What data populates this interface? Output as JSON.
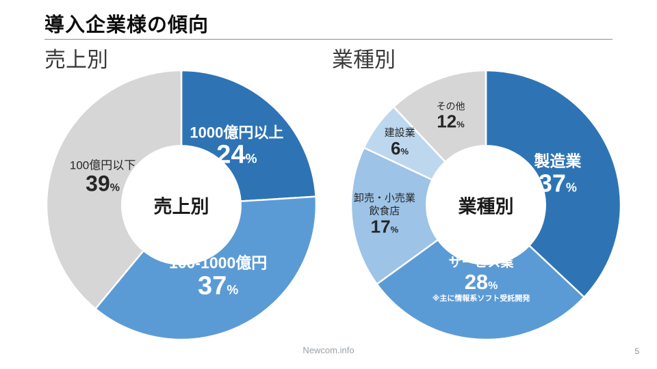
{
  "page": {
    "title": "導入企業様の傾向",
    "footer_site": "Newcom.info",
    "page_number": "5"
  },
  "headings": {
    "left": "売上別",
    "right": "業種別"
  },
  "chart_data": [
    {
      "type": "pie",
      "style": "donut",
      "title": "売上別",
      "center_label": "売上別",
      "unit": "%",
      "start_angle_deg": 0,
      "direction": "clockwise",
      "inner_radius_ratio": 0.44,
      "legend_position": "inside-slices",
      "slices": [
        {
          "label": [
            "1000億円以上"
          ],
          "value": 24,
          "color": "#2E74B5",
          "text_color": "#FFFFFF",
          "label_r": 0.6,
          "label_size": 22,
          "label_bold": true,
          "value_size": 38
        },
        {
          "label": [
            "100-1000億円"
          ],
          "value": 37,
          "color": "#5B9BD5",
          "text_color": "#FFFFFF",
          "label_r": 0.6,
          "label_size": 23,
          "label_bold": true,
          "value_size": 38
        },
        {
          "label": [
            "100億円以下"
          ],
          "value": 39,
          "color": "#D6D6D6",
          "text_color": "#262626",
          "label_r": 0.62,
          "label_size": 17,
          "label_bold": false,
          "value_size": 32
        }
      ]
    },
    {
      "type": "pie",
      "style": "donut",
      "title": "業種別",
      "center_label": "業種別",
      "unit": "%",
      "start_angle_deg": 0,
      "direction": "clockwise",
      "inner_radius_ratio": 0.44,
      "legend_position": "inside-slices",
      "slices": [
        {
          "label": [
            "製造業"
          ],
          "value": 37,
          "color": "#2E74B5",
          "text_color": "#FFFFFF",
          "label_r": 0.58,
          "label_size": 23,
          "label_bold": true,
          "value_size": 36
        },
        {
          "label": [
            "サービス業"
          ],
          "value": 28,
          "color": "#5B9BD5",
          "text_color": "#FFFFFF",
          "label_r": 0.56,
          "label_size": 19,
          "label_bold": true,
          "value_size": 31,
          "note": "※主に情報系ソフト受託開発",
          "note_size": 11
        },
        {
          "label": [
            "卸売・小売業",
            "飲食店"
          ],
          "value": 17,
          "color": "#9DC3E6",
          "text_color": "#262626",
          "label_r": 0.755,
          "label_size": 15,
          "label_bold": false,
          "value_size": 26
        },
        {
          "label": [
            "建設業"
          ],
          "value": 6,
          "color": "#BDD7EE",
          "text_color": "#262626",
          "label_r": 0.79,
          "label_size": 15,
          "label_bold": false,
          "value_size": 26
        },
        {
          "label": [
            "その他"
          ],
          "value": 12,
          "color": "#D6D6D6",
          "text_color": "#262626",
          "label_r": 0.71,
          "label_size": 14,
          "label_bold": false,
          "value_size": 26
        }
      ]
    }
  ]
}
